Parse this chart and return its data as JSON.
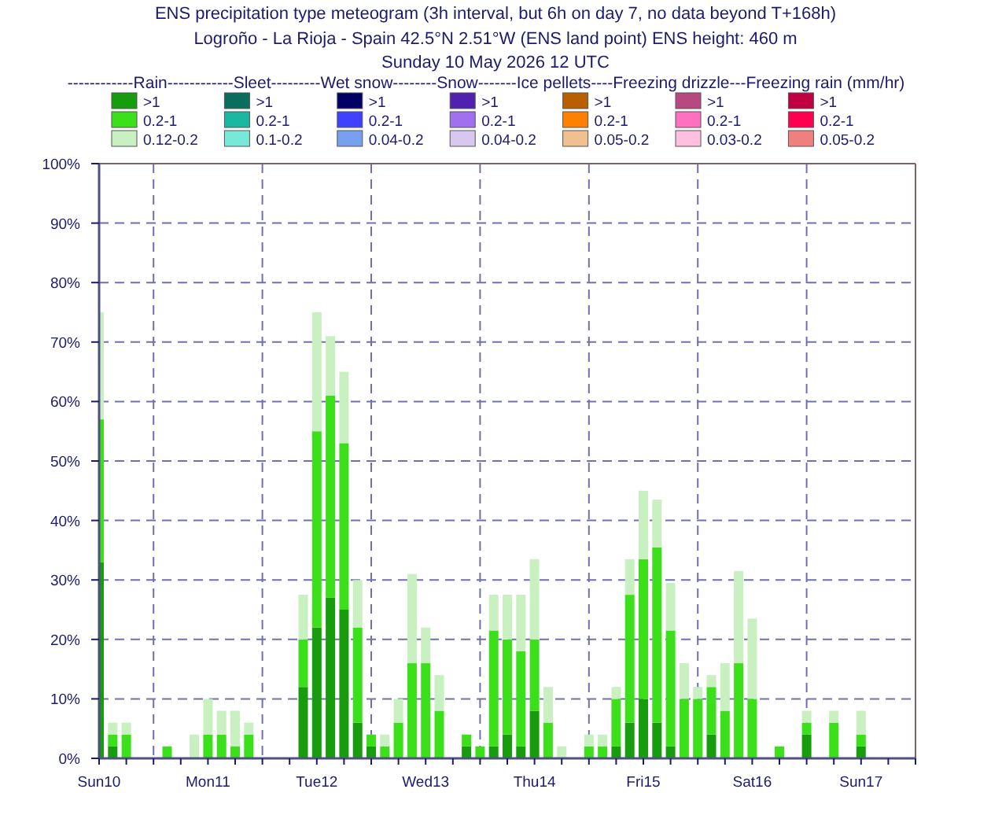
{
  "chart_data": {
    "type": "bar",
    "stacked": true,
    "title": "ENS precipitation type meteogram (3h interval, but 6h on day 7, no data beyond T+168h)",
    "subtitle": "Logroño - La Rioja - Spain 42.5°N 2.51°W (ENS land point) ENS height: 460 m\nSunday 10 May 2026 12 UTC",
    "legend_title": "------------Rain------------Sleet---------Wet snow--------Snow-------Ice pellets----Freezing drizzle---Freezing rain (mm/hr)",
    "legend": "top",
    "x": [
      "2026-05-10T12:00",
      "2026-05-10T15:00",
      "2026-05-10T18:00",
      "2026-05-10T21:00",
      "2026-05-11T00:00",
      "2026-05-11T03:00",
      "2026-05-11T06:00",
      "2026-05-11T09:00",
      "2026-05-11T12:00",
      "2026-05-11T15:00",
      "2026-05-11T18:00",
      "2026-05-11T21:00",
      "2026-05-12T00:00",
      "2026-05-12T03:00",
      "2026-05-12T06:00",
      "2026-05-12T09:00",
      "2026-05-12T12:00",
      "2026-05-12T15:00",
      "2026-05-12T18:00",
      "2026-05-12T21:00",
      "2026-05-13T00:00",
      "2026-05-13T03:00",
      "2026-05-13T06:00",
      "2026-05-13T09:00",
      "2026-05-13T12:00",
      "2026-05-13T15:00",
      "2026-05-13T18:00",
      "2026-05-13T21:00",
      "2026-05-14T00:00",
      "2026-05-14T03:00",
      "2026-05-14T06:00",
      "2026-05-14T09:00",
      "2026-05-14T12:00",
      "2026-05-14T15:00",
      "2026-05-14T18:00",
      "2026-05-14T21:00",
      "2026-05-15T00:00",
      "2026-05-15T03:00",
      "2026-05-15T06:00",
      "2026-05-15T09:00",
      "2026-05-15T12:00",
      "2026-05-15T15:00",
      "2026-05-15T18:00",
      "2026-05-15T21:00",
      "2026-05-16T00:00",
      "2026-05-16T03:00",
      "2026-05-16T06:00",
      "2026-05-16T09:00",
      "2026-05-16T12:00",
      "2026-05-16T18:00",
      "2026-05-17T00:00",
      "2026-05-17T06:00",
      "2026-05-17T12:00"
    ],
    "xlim": [
      "2026-05-10T12:00",
      "2026-05-18T00:00"
    ],
    "xticks": [
      {
        "value": "2026-05-10T12:00",
        "label": "Sun10"
      },
      {
        "value": "2026-05-10T18:00",
        "label": null
      },
      {
        "value": "2026-05-11T00:00",
        "label": null
      },
      {
        "value": "2026-05-11T06:00",
        "label": null
      },
      {
        "value": "2026-05-11T12:00",
        "label": "Mon11"
      },
      {
        "value": "2026-05-11T18:00",
        "label": null
      },
      {
        "value": "2026-05-12T00:00",
        "label": null
      },
      {
        "value": "2026-05-12T06:00",
        "label": null
      },
      {
        "value": "2026-05-12T12:00",
        "label": "Tue12"
      },
      {
        "value": "2026-05-12T18:00",
        "label": null
      },
      {
        "value": "2026-05-13T00:00",
        "label": null
      },
      {
        "value": "2026-05-13T06:00",
        "label": null
      },
      {
        "value": "2026-05-13T12:00",
        "label": "Wed13"
      },
      {
        "value": "2026-05-13T18:00",
        "label": null
      },
      {
        "value": "2026-05-14T00:00",
        "label": null
      },
      {
        "value": "2026-05-14T06:00",
        "label": null
      },
      {
        "value": "2026-05-14T12:00",
        "label": "Thu14"
      },
      {
        "value": "2026-05-14T18:00",
        "label": null
      },
      {
        "value": "2026-05-15T00:00",
        "label": null
      },
      {
        "value": "2026-05-15T06:00",
        "label": null
      },
      {
        "value": "2026-05-15T12:00",
        "label": "Fri15"
      },
      {
        "value": "2026-05-15T18:00",
        "label": null
      },
      {
        "value": "2026-05-16T00:00",
        "label": null
      },
      {
        "value": "2026-05-16T06:00",
        "label": null
      },
      {
        "value": "2026-05-16T12:00",
        "label": "Sat16"
      },
      {
        "value": "2026-05-16T18:00",
        "label": null
      },
      {
        "value": "2026-05-17T00:00",
        "label": null
      },
      {
        "value": "2026-05-17T06:00",
        "label": null
      },
      {
        "value": "2026-05-17T12:00",
        "label": "Sun17"
      },
      {
        "value": "2026-05-17T18:00",
        "label": null
      },
      {
        "value": "2026-05-18T00:00",
        "label": null
      }
    ],
    "ylim": [
      0,
      100
    ],
    "yticks": [
      {
        "value": 0,
        "label": "0%"
      },
      {
        "value": 10,
        "label": "10%"
      },
      {
        "value": 20,
        "label": "20%"
      },
      {
        "value": 30,
        "label": "30%"
      },
      {
        "value": 40,
        "label": "40%"
      },
      {
        "value": 50,
        "label": "50%"
      },
      {
        "value": 60,
        "label": "60%"
      },
      {
        "value": 70,
        "label": "70%"
      },
      {
        "value": 80,
        "label": "80%"
      },
      {
        "value": 90,
        "label": "90%"
      },
      {
        "value": 100,
        "label": "100%"
      }
    ],
    "grid": "y",
    "ref_lines": [
      {
        "axis": "x",
        "value": "2026-05-11T00:00",
        "line_style": "dashed",
        "color": "#7070b0"
      },
      {
        "axis": "x",
        "value": "2026-05-12T00:00",
        "line_style": "dashed",
        "color": "#7070b0"
      },
      {
        "axis": "x",
        "value": "2026-05-13T00:00",
        "line_style": "dashed",
        "color": "#7070b0"
      },
      {
        "axis": "x",
        "value": "2026-05-14T00:00",
        "line_style": "dashed",
        "color": "#7070b0"
      },
      {
        "axis": "x",
        "value": "2026-05-15T00:00",
        "line_style": "dashed",
        "color": "#7070b0"
      },
      {
        "axis": "x",
        "value": "2026-05-16T00:00",
        "line_style": "dashed",
        "color": "#7070b0"
      },
      {
        "axis": "x",
        "value": "2026-05-17T00:00",
        "line_style": "dashed",
        "color": "#7070b0"
      }
    ],
    "series": [
      {
        "name": ">1",
        "color": "#169c0c",
        "values": [
          33,
          2,
          0,
          0,
          0,
          0,
          0,
          0,
          0,
          0,
          0,
          0,
          0,
          0,
          0,
          12,
          22,
          27,
          25,
          6,
          2,
          0,
          0,
          0,
          0,
          0,
          0,
          2,
          0,
          2,
          4,
          2,
          8,
          0,
          0,
          0,
          0,
          0,
          2,
          6,
          10,
          6,
          2,
          0,
          0,
          4,
          0,
          0,
          0,
          0,
          4,
          0,
          2
        ]
      },
      {
        "name": "0.2-1",
        "color": "#3ce01a",
        "values": [
          24,
          2,
          4,
          0,
          0,
          2,
          0,
          0,
          4,
          4,
          2,
          4,
          0,
          0,
          0,
          8,
          33,
          34,
          28,
          16,
          2,
          2,
          6,
          16,
          16,
          8,
          0,
          2,
          2,
          19.5,
          16,
          16,
          12,
          6,
          0,
          0,
          2,
          2,
          8,
          21.5,
          23.5,
          29.5,
          19.5,
          10,
          10,
          8,
          8,
          16,
          10,
          2,
          2,
          6,
          2
        ]
      },
      {
        "name": "0.12-0.2",
        "color": "#c8f0c0",
        "values": [
          18,
          2,
          2,
          0,
          0,
          0,
          0,
          4,
          6,
          4,
          6,
          2,
          0,
          0,
          0,
          7.5,
          20,
          10,
          12,
          8,
          0,
          2,
          4,
          15,
          6,
          6,
          0,
          0,
          0,
          6,
          7.5,
          9.5,
          13.5,
          6,
          2,
          0,
          2,
          2,
          2,
          6,
          11.5,
          8,
          8,
          6,
          2,
          2,
          8,
          15.5,
          13.5,
          0,
          2,
          2,
          4
        ]
      },
      {
        "name": ">1",
        "color": "#0a6e5e",
        "values": [
          0,
          0,
          0,
          0,
          0,
          0,
          0,
          0,
          0,
          0,
          0,
          0,
          0,
          0,
          0,
          0,
          0,
          0,
          0,
          0,
          0,
          0,
          0,
          0,
          0,
          0,
          0,
          0,
          0,
          0,
          0,
          0,
          0,
          0,
          0,
          0,
          0,
          0,
          0,
          0,
          0,
          0,
          0,
          0,
          0,
          0,
          0,
          0,
          0,
          0,
          0,
          0,
          0
        ]
      },
      {
        "name": "0.2-1",
        "color": "#1ab8a0",
        "values": [
          0,
          0,
          0,
          0,
          0,
          0,
          0,
          0,
          0,
          0,
          0,
          0,
          0,
          0,
          0,
          0,
          0,
          0,
          0,
          0,
          0,
          0,
          0,
          0,
          0,
          0,
          0,
          0,
          0,
          0,
          0,
          0,
          0,
          0,
          0,
          0,
          0,
          0,
          0,
          0,
          0,
          0,
          0,
          0,
          0,
          0,
          0,
          0,
          0,
          0,
          0,
          0,
          0
        ]
      },
      {
        "name": "0.1-0.2",
        "color": "#78e8d8",
        "values": [
          0,
          0,
          0,
          0,
          0,
          0,
          0,
          0,
          0,
          0,
          0,
          0,
          0,
          0,
          0,
          0,
          0,
          0,
          0,
          0,
          0,
          0,
          0,
          0,
          0,
          0,
          0,
          0,
          0,
          0,
          0,
          0,
          0,
          0,
          0,
          0,
          0,
          0,
          0,
          0,
          0,
          0,
          0,
          0,
          0,
          0,
          0,
          0,
          0,
          0,
          0,
          0,
          0
        ]
      },
      {
        "name": ">1",
        "color": "#000064",
        "values": [
          0,
          0,
          0,
          0,
          0,
          0,
          0,
          0,
          0,
          0,
          0,
          0,
          0,
          0,
          0,
          0,
          0,
          0,
          0,
          0,
          0,
          0,
          0,
          0,
          0,
          0,
          0,
          0,
          0,
          0,
          0,
          0,
          0,
          0,
          0,
          0,
          0,
          0,
          0,
          0,
          0,
          0,
          0,
          0,
          0,
          0,
          0,
          0,
          0,
          0,
          0,
          0,
          0
        ]
      },
      {
        "name": "0.2-1",
        "color": "#4040ff",
        "values": [
          0,
          0,
          0,
          0,
          0,
          0,
          0,
          0,
          0,
          0,
          0,
          0,
          0,
          0,
          0,
          0,
          0,
          0,
          0,
          0,
          0,
          0,
          0,
          0,
          0,
          0,
          0,
          0,
          0,
          0,
          0,
          0,
          0,
          0,
          0,
          0,
          0,
          0,
          0,
          0,
          0,
          0,
          0,
          0,
          0,
          0,
          0,
          0,
          0,
          0,
          0,
          0,
          0
        ]
      },
      {
        "name": "0.04-0.2",
        "color": "#78a0f0",
        "values": [
          0,
          0,
          0,
          0,
          0,
          0,
          0,
          0,
          0,
          0,
          0,
          0,
          0,
          0,
          0,
          0,
          0,
          0,
          0,
          0,
          0,
          0,
          0,
          0,
          0,
          0,
          0,
          0,
          0,
          0,
          0,
          0,
          0,
          0,
          0,
          0,
          0,
          0,
          0,
          0,
          0,
          0,
          0,
          0,
          0,
          0,
          0,
          0,
          0,
          0,
          0,
          0,
          0
        ]
      },
      {
        "name": ">1",
        "color": "#5020b0",
        "values": [
          0,
          0,
          0,
          0,
          0,
          0,
          0,
          0,
          0,
          0,
          0,
          0,
          0,
          0,
          0,
          0,
          0,
          0,
          0,
          0,
          0,
          0,
          0,
          0,
          0,
          0,
          0,
          0,
          0,
          0,
          0,
          0,
          0,
          0,
          0,
          0,
          0,
          0,
          0,
          0,
          0,
          0,
          0,
          0,
          0,
          0,
          0,
          0,
          0,
          0,
          0,
          0,
          0
        ]
      },
      {
        "name": "0.2-1",
        "color": "#a070f0",
        "values": [
          0,
          0,
          0,
          0,
          0,
          0,
          0,
          0,
          0,
          0,
          0,
          0,
          0,
          0,
          0,
          0,
          0,
          0,
          0,
          0,
          0,
          0,
          0,
          0,
          0,
          0,
          0,
          0,
          0,
          0,
          0,
          0,
          0,
          0,
          0,
          0,
          0,
          0,
          0,
          0,
          0,
          0,
          0,
          0,
          0,
          0,
          0,
          0,
          0,
          0,
          0,
          0,
          0
        ]
      },
      {
        "name": "0.04-0.2",
        "color": "#d8c8f0",
        "values": [
          0,
          0,
          0,
          0,
          0,
          0,
          0,
          0,
          0,
          0,
          0,
          0,
          0,
          0,
          0,
          0,
          0,
          0,
          0,
          0,
          0,
          0,
          0,
          0,
          0,
          0,
          0,
          0,
          0,
          0,
          0,
          0,
          0,
          0,
          0,
          0,
          0,
          0,
          0,
          0,
          0,
          0,
          0,
          0,
          0,
          0,
          0,
          0,
          0,
          0,
          0,
          0,
          0
        ]
      },
      {
        "name": ">1",
        "color": "#b86000",
        "values": [
          0,
          0,
          0,
          0,
          0,
          0,
          0,
          0,
          0,
          0,
          0,
          0,
          0,
          0,
          0,
          0,
          0,
          0,
          0,
          0,
          0,
          0,
          0,
          0,
          0,
          0,
          0,
          0,
          0,
          0,
          0,
          0,
          0,
          0,
          0,
          0,
          0,
          0,
          0,
          0,
          0,
          0,
          0,
          0,
          0,
          0,
          0,
          0,
          0,
          0,
          0,
          0,
          0
        ]
      },
      {
        "name": "0.2-1",
        "color": "#ff8000",
        "values": [
          0,
          0,
          0,
          0,
          0,
          0,
          0,
          0,
          0,
          0,
          0,
          0,
          0,
          0,
          0,
          0,
          0,
          0,
          0,
          0,
          0,
          0,
          0,
          0,
          0,
          0,
          0,
          0,
          0,
          0,
          0,
          0,
          0,
          0,
          0,
          0,
          0,
          0,
          0,
          0,
          0,
          0,
          0,
          0,
          0,
          0,
          0,
          0,
          0,
          0,
          0,
          0,
          0
        ]
      },
      {
        "name": "0.05-0.2",
        "color": "#f0c090",
        "values": [
          0,
          0,
          0,
          0,
          0,
          0,
          0,
          0,
          0,
          0,
          0,
          0,
          0,
          0,
          0,
          0,
          0,
          0,
          0,
          0,
          0,
          0,
          0,
          0,
          0,
          0,
          0,
          0,
          0,
          0,
          0,
          0,
          0,
          0,
          0,
          0,
          0,
          0,
          0,
          0,
          0,
          0,
          0,
          0,
          0,
          0,
          0,
          0,
          0,
          0,
          0,
          0,
          0
        ]
      },
      {
        "name": ">1",
        "color": "#b84880",
        "values": [
          0,
          0,
          0,
          0,
          0,
          0,
          0,
          0,
          0,
          0,
          0,
          0,
          0,
          0,
          0,
          0,
          0,
          0,
          0,
          0,
          0,
          0,
          0,
          0,
          0,
          0,
          0,
          0,
          0,
          0,
          0,
          0,
          0,
          0,
          0,
          0,
          0,
          0,
          0,
          0,
          0,
          0,
          0,
          0,
          0,
          0,
          0,
          0,
          0,
          0,
          0,
          0,
          0
        ]
      },
      {
        "name": "0.2-1",
        "color": "#ff70c0",
        "values": [
          0,
          0,
          0,
          0,
          0,
          0,
          0,
          0,
          0,
          0,
          0,
          0,
          0,
          0,
          0,
          0,
          0,
          0,
          0,
          0,
          0,
          0,
          0,
          0,
          0,
          0,
          0,
          0,
          0,
          0,
          0,
          0,
          0,
          0,
          0,
          0,
          0,
          0,
          0,
          0,
          0,
          0,
          0,
          0,
          0,
          0,
          0,
          0,
          0,
          0,
          0,
          0,
          0
        ]
      },
      {
        "name": "0.03-0.2",
        "color": "#ffc0e0",
        "values": [
          0,
          0,
          0,
          0,
          0,
          0,
          0,
          0,
          0,
          0,
          0,
          0,
          0,
          0,
          0,
          0,
          0,
          0,
          0,
          0,
          0,
          0,
          0,
          0,
          0,
          0,
          0,
          0,
          0,
          0,
          0,
          0,
          0,
          0,
          0,
          0,
          0,
          0,
          0,
          0,
          0,
          0,
          0,
          0,
          0,
          0,
          0,
          0,
          0,
          0,
          0,
          0,
          0
        ]
      },
      {
        "name": ">1",
        "color": "#c00040",
        "values": [
          0,
          0,
          0,
          0,
          0,
          0,
          0,
          0,
          0,
          0,
          0,
          0,
          0,
          0,
          0,
          0,
          0,
          0,
          0,
          0,
          0,
          0,
          0,
          0,
          0,
          0,
          0,
          0,
          0,
          0,
          0,
          0,
          0,
          0,
          0,
          0,
          0,
          0,
          0,
          0,
          0,
          0,
          0,
          0,
          0,
          0,
          0,
          0,
          0,
          0,
          0,
          0,
          0
        ]
      },
      {
        "name": "0.2-1",
        "color": "#ff0050",
        "values": [
          0,
          0,
          0,
          0,
          0,
          0,
          0,
          0,
          0,
          0,
          0,
          0,
          0,
          0,
          0,
          0,
          0,
          0,
          0,
          0,
          0,
          0,
          0,
          0,
          0,
          0,
          0,
          0,
          0,
          0,
          0,
          0,
          0,
          0,
          0,
          0,
          0,
          0,
          0,
          0,
          0,
          0,
          0,
          0,
          0,
          0,
          0,
          0,
          0,
          0,
          0,
          0,
          0
        ]
      },
      {
        "name": "0.05-0.2",
        "color": "#f08080",
        "values": [
          0,
          0,
          0,
          0,
          0,
          0,
          0,
          0,
          0,
          0,
          0,
          0,
          0,
          0,
          0,
          0,
          0,
          0,
          0,
          0,
          0,
          0,
          0,
          0,
          0,
          0,
          0,
          0,
          0,
          0,
          0,
          0,
          0,
          0,
          0,
          0,
          0,
          0,
          0,
          0,
          0,
          0,
          0,
          0,
          0,
          0,
          0,
          0,
          0,
          0,
          0,
          0,
          0
        ]
      }
    ]
  }
}
